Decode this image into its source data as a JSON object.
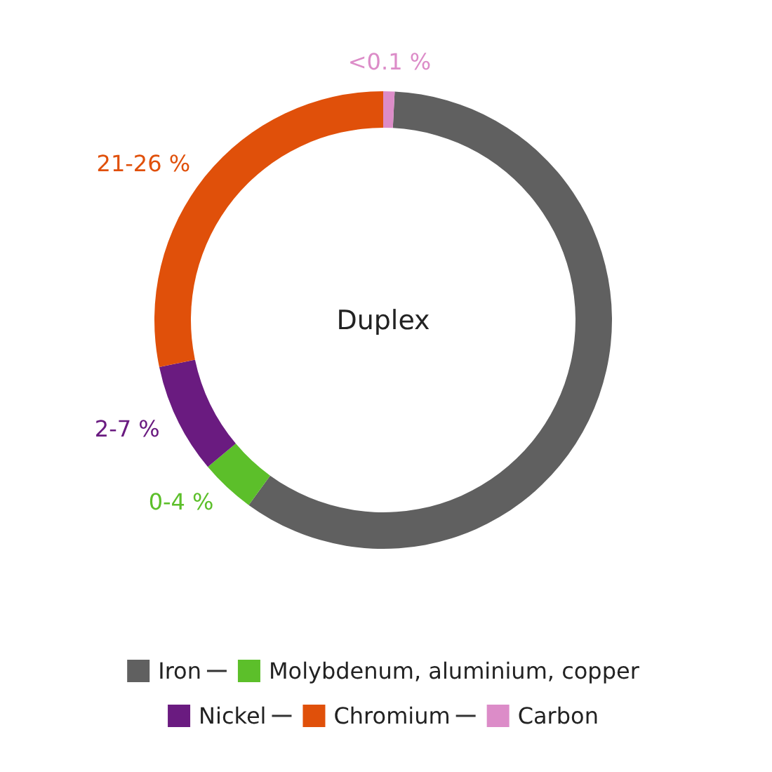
{
  "chart_data": {
    "type": "donut",
    "title": "Duplex",
    "categories": [
      "Iron",
      "Molybdenum, aluminium, copper",
      "Nickel",
      "Chromium",
      "Carbon"
    ],
    "values": [
      59.2,
      3.9,
      7.8,
      28.3,
      0.8
    ],
    "colors": [
      "#606060",
      "#5cbf2a",
      "#6a1b80",
      "#e0500a",
      "#dc8cc8"
    ],
    "annotations": [
      {
        "text": "0-4 %",
        "x": "Molybdenum, aluminium, copper"
      },
      {
        "text": "2-7 %",
        "x": "Nickel"
      },
      {
        "text": "21-26 %",
        "x": "Chromium"
      },
      {
        "text": "<0.1 %",
        "x": "Carbon"
      }
    ],
    "legend": "bottom"
  }
}
